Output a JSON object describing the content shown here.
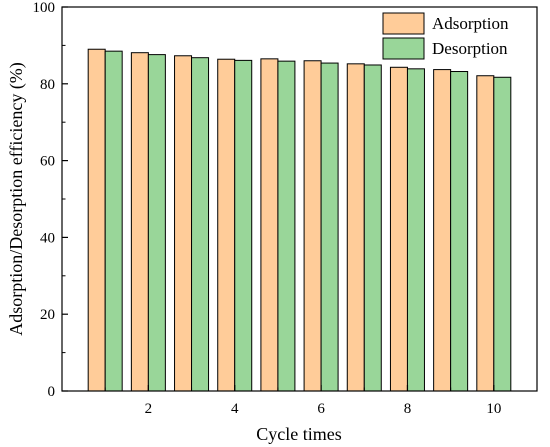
{
  "chart_data": {
    "type": "bar",
    "x": [
      1,
      2,
      3,
      4,
      5,
      6,
      7,
      8,
      9,
      10
    ],
    "series": [
      {
        "name": "Adsorption",
        "color": "#FFCC99",
        "values": [
          89.0,
          88.1,
          87.3,
          86.4,
          86.5,
          86.0,
          85.2,
          84.3,
          83.7,
          82.1
        ]
      },
      {
        "name": "Desorption",
        "color": "#99D699",
        "values": [
          88.5,
          87.6,
          86.8,
          86.1,
          85.9,
          85.4,
          84.9,
          83.9,
          83.2,
          81.7
        ]
      }
    ],
    "xlabel": "Cycle times",
    "ylabel": "Adsorption/Desorption efficiency (%)",
    "xlim": [
      0,
      11
    ],
    "ylim": [
      0,
      100
    ],
    "x_ticks": [
      "2",
      "4",
      "6",
      "8",
      "10"
    ],
    "y_ticks": [
      "0",
      "20",
      "40",
      "60",
      "80",
      "100"
    ],
    "grid": false,
    "legend_position": "top-right"
  }
}
